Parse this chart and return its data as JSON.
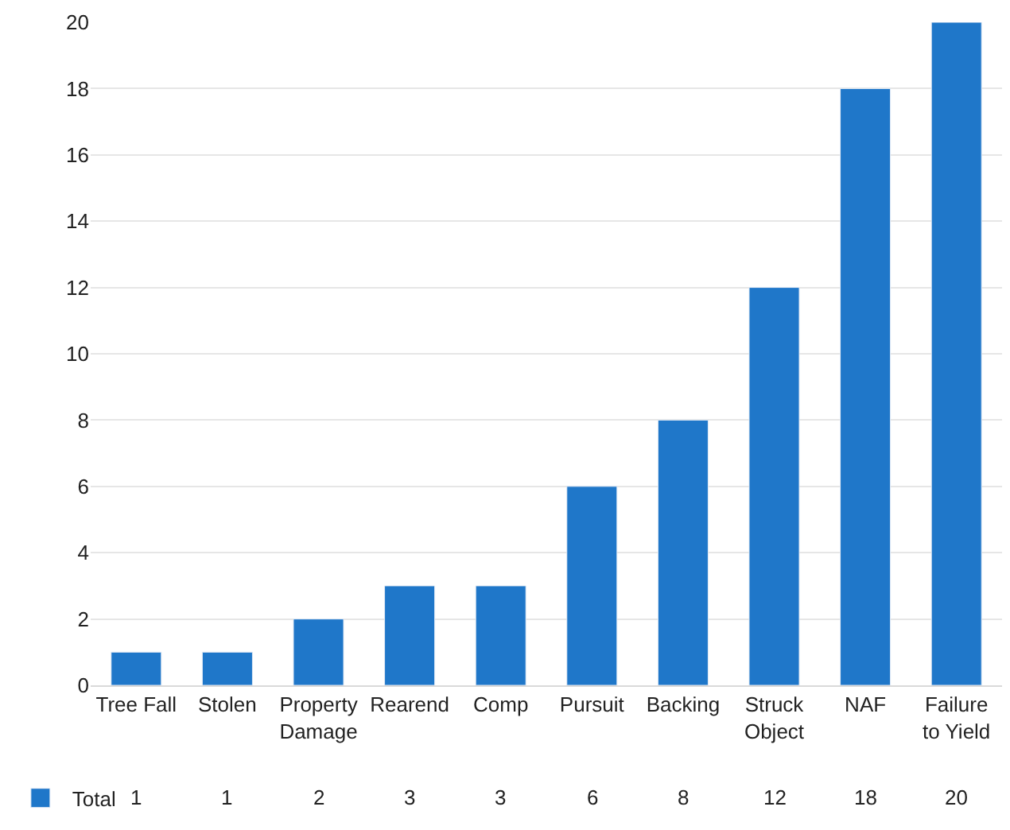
{
  "chart_data": {
    "type": "bar",
    "categories": [
      "Tree Fall",
      "Stolen",
      "Property Damage",
      "Rearend",
      "Comp",
      "Pursuit",
      "Backing",
      "Struck Object",
      "NAF",
      "Failure to Yield"
    ],
    "series": [
      {
        "name": "Total",
        "color": "#1f77c9",
        "values": [
          1,
          1,
          2,
          3,
          3,
          6,
          8,
          12,
          18,
          20
        ]
      }
    ],
    "ylim": [
      0,
      20
    ],
    "yticks": [
      0,
      2,
      4,
      6,
      8,
      10,
      12,
      14,
      16,
      18,
      20
    ],
    "grid": "y",
    "legend": "bottom left",
    "data_labels": true
  }
}
